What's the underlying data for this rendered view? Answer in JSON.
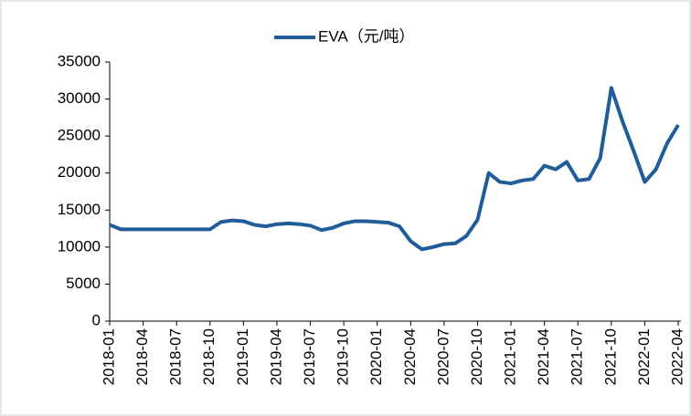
{
  "chart_data": {
    "type": "line",
    "x": [
      "2018-01",
      "2018-02",
      "2018-03",
      "2018-04",
      "2018-05",
      "2018-06",
      "2018-07",
      "2018-08",
      "2018-09",
      "2018-10",
      "2018-11",
      "2018-12",
      "2019-01",
      "2019-02",
      "2019-03",
      "2019-04",
      "2019-05",
      "2019-06",
      "2019-07",
      "2019-08",
      "2019-09",
      "2019-10",
      "2019-11",
      "2019-12",
      "2020-01",
      "2020-02",
      "2020-03",
      "2020-04",
      "2020-05",
      "2020-06",
      "2020-07",
      "2020-08",
      "2020-09",
      "2020-10",
      "2020-11",
      "2020-12",
      "2021-01",
      "2021-02",
      "2021-03",
      "2021-04",
      "2021-05",
      "2021-06",
      "2021-07",
      "2021-08",
      "2021-09",
      "2021-10",
      "2021-11",
      "2021-12",
      "2022-01",
      "2022-02",
      "2022-03",
      "2022-04"
    ],
    "series": [
      {
        "name": "EVA（元/吨）",
        "color": "#1f5c99",
        "values": [
          13000,
          12400,
          12400,
          12400,
          12400,
          12400,
          12400,
          12400,
          12400,
          12400,
          13400,
          13600,
          13500,
          13000,
          12800,
          13100,
          13200,
          13100,
          12900,
          12300,
          12600,
          13200,
          13500,
          13500,
          13400,
          13300,
          12800,
          10800,
          9700,
          10000,
          10400,
          10500,
          11500,
          13700,
          20000,
          18800,
          18600,
          19000,
          19200,
          21000,
          20500,
          21500,
          19000,
          19200,
          22000,
          31500,
          27000,
          23000,
          18800,
          20500,
          24000,
          26500
        ]
      }
    ],
    "xticks": [
      "2018-01",
      "2018-04",
      "2018-07",
      "2018-10",
      "2019-01",
      "2019-04",
      "2019-07",
      "2019-10",
      "2020-01",
      "2020-04",
      "2020-07",
      "2020-10",
      "2021-01",
      "2021-04",
      "2021-07",
      "2021-10",
      "2022-01",
      "2022-04"
    ],
    "ylim": [
      0,
      35000
    ],
    "yticks": [
      0,
      5000,
      10000,
      15000,
      20000,
      25000,
      30000,
      35000
    ],
    "legend": "top"
  }
}
